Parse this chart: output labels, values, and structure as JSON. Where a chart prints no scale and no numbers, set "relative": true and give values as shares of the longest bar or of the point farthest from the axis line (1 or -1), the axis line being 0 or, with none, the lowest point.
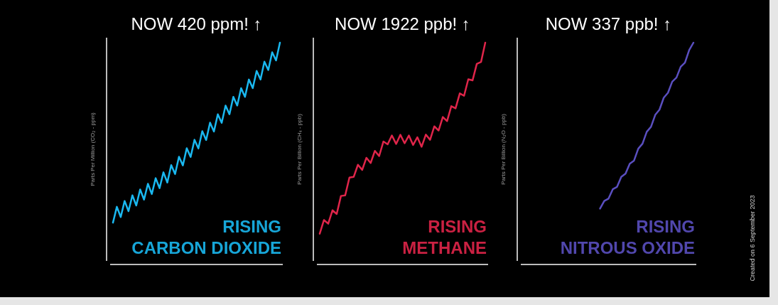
{
  "chart_data": [
    {
      "type": "line",
      "title": "NOW 420 ppm! ↑",
      "ylabel": "Parts Per Million (CO₂ - ppm)",
      "relative": true,
      "categories": [
        null,
        null,
        null,
        null,
        null,
        null,
        null,
        null,
        null,
        null,
        null,
        null,
        null,
        null,
        null,
        null,
        null,
        null,
        null,
        null,
        null,
        null,
        null,
        null,
        null,
        null,
        null,
        null,
        null,
        null,
        null,
        null,
        null,
        null,
        null,
        null,
        null,
        null,
        null,
        null,
        null,
        null,
        null,
        null
      ],
      "series": [
        {
          "color": "#1ab8f0",
          "values": [
            0.17,
            0.243,
            0.196,
            0.27,
            0.223,
            0.296,
            0.249,
            0.323,
            0.276,
            0.349,
            0.302,
            0.375,
            0.329,
            0.402,
            0.355,
            0.435,
            0.394,
            0.474,
            0.434,
            0.513,
            0.473,
            0.552,
            0.512,
            0.592,
            0.551,
            0.631,
            0.59,
            0.67,
            0.63,
            0.71,
            0.67,
            0.75,
            0.71,
            0.79,
            0.75,
            0.83,
            0.79,
            0.87,
            0.83,
            0.912,
            0.874,
            0.956,
            0.918,
            1.0
          ]
        }
      ],
      "annotations": [
        "RISING",
        "CARBON DIOXIDE"
      ]
    },
    {
      "type": "line",
      "title": "NOW 1922 ppb! ↑",
      "ylabel": "Parts Per Billion (CH₄ - ppb)",
      "relative": true,
      "categories": [
        null,
        null,
        null,
        null,
        null,
        null,
        null,
        null,
        null,
        null,
        null,
        null,
        null,
        null,
        null,
        null,
        null,
        null,
        null,
        null,
        null,
        null,
        null,
        null,
        null,
        null,
        null,
        null,
        null,
        null,
        null,
        null,
        null,
        null,
        null,
        null,
        null,
        null,
        null,
        null
      ],
      "series": [
        {
          "color": "#e0254a",
          "values": [
            0.119,
            0.182,
            0.165,
            0.227,
            0.21,
            0.293,
            0.296,
            0.378,
            0.381,
            0.437,
            0.413,
            0.469,
            0.445,
            0.501,
            0.477,
            0.544,
            0.531,
            0.572,
            0.533,
            0.575,
            0.536,
            0.572,
            0.528,
            0.564,
            0.52,
            0.576,
            0.552,
            0.614,
            0.595,
            0.657,
            0.638,
            0.707,
            0.697,
            0.766,
            0.755,
            0.831,
            0.826,
            0.902,
            0.911,
            1.0
          ]
        }
      ],
      "annotations": [
        "RISING",
        "METHANE"
      ]
    },
    {
      "type": "line",
      "title": "NOW 337 ppb! ↑",
      "ylabel": "Parts Per Billion (N₂O - ppb)",
      "relative": true,
      "categories": [
        null,
        null,
        null,
        null,
        null,
        null,
        null,
        null,
        null,
        null,
        null,
        null,
        null,
        null,
        null,
        null,
        null,
        null,
        null,
        null,
        null,
        null,
        null,
        null,
        null,
        null,
        null,
        null,
        null,
        null,
        null,
        null,
        null,
        null,
        null,
        null,
        null,
        null,
        null,
        null,
        null
      ],
      "series": [
        {
          "color": "#5a4fc0",
          "values": [
            null,
            null,
            null,
            null,
            null,
            null,
            null,
            null,
            null,
            null,
            null,
            null,
            null,
            null,
            null,
            null,
            null,
            null,
            0.235,
            0.27,
            0.281,
            0.324,
            0.335,
            0.381,
            0.396,
            0.442,
            0.456,
            0.511,
            0.534,
            0.589,
            0.612,
            0.667,
            0.691,
            0.746,
            0.769,
            0.82,
            0.839,
            0.889,
            0.908,
            0.966,
            1.0
          ]
        }
      ],
      "annotations": [
        "RISING",
        "NITROUS OXIDE",
        "Created on 6 September 2023"
      ]
    }
  ]
}
